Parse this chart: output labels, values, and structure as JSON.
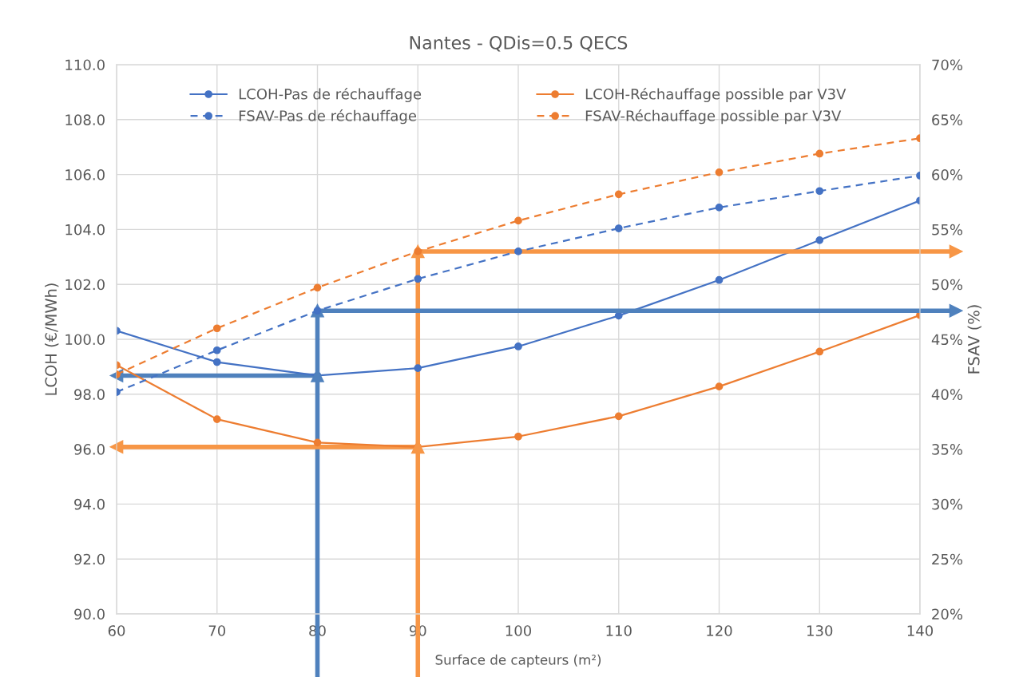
{
  "chart_data": {
    "type": "line",
    "title": "Nantes - QDis=0.5 QECS",
    "xlabel": "Surface de capteurs (m²)",
    "ylabel": "LCOH (€/MWh)",
    "y2label": "FSAV (%)",
    "x": [
      60,
      70,
      80,
      90,
      100,
      110,
      120,
      130,
      140
    ],
    "series": [
      {
        "name": "LCOH-Pas de réchauffage",
        "color": "#4472c4",
        "line_style": "solid",
        "values": [
          100.31,
          99.17,
          98.68,
          98.95,
          99.74,
          100.86,
          102.16,
          103.61,
          105.05
        ]
      },
      {
        "name": "LCOH-Réchauffage possible par V3V",
        "color": "#ed7d31",
        "line_style": "solid",
        "values": [
          99.06,
          97.09,
          96.24,
          96.08,
          96.46,
          97.2,
          98.28,
          99.55,
          100.88
        ]
      },
      {
        "name": "FSAV-Pas de réchauffage",
        "color": "#4472c4",
        "line_style": "dashed",
        "axis": "y2",
        "values": [
          40.2,
          44.0,
          47.6,
          50.5,
          53.0,
          55.1,
          57.0,
          58.5,
          59.9
        ]
      },
      {
        "name": "FSAV-Réchauffage possible par V3V",
        "color": "#ed7d31",
        "line_style": "dashed",
        "axis": "y2",
        "values": [
          41.8,
          46.0,
          49.7,
          53.0,
          55.8,
          58.2,
          60.2,
          61.9,
          63.3
        ]
      }
    ],
    "ref_lines": [
      {
        "axis": "x",
        "value": 80,
        "color": "#4f81bd"
      },
      {
        "axis": "x",
        "value": 90,
        "color": "#f79646"
      },
      {
        "axis": "y",
        "value": 98.68,
        "color": "#4f81bd"
      },
      {
        "axis": "y",
        "value": 96.08,
        "color": "#f79646"
      },
      {
        "axis": "y2",
        "value": 47.6,
        "color": "#4f81bd"
      },
      {
        "axis": "y2",
        "value": 53.0,
        "color": "#f79646"
      }
    ],
    "marker": "circle",
    "grid": true,
    "legend": "top",
    "xlim": [
      60,
      140
    ],
    "xticks": [
      60,
      70,
      80,
      90,
      100,
      110,
      120,
      130,
      140
    ],
    "ylim": [
      90,
      110
    ],
    "yticks": [
      {
        "value": 90,
        "label": "90.0"
      },
      {
        "value": 92,
        "label": "92.0"
      },
      {
        "value": 94,
        "label": "94.0"
      },
      {
        "value": 96,
        "label": "96.0"
      },
      {
        "value": 98,
        "label": "98.0"
      },
      {
        "value": 100,
        "label": "100.0"
      },
      {
        "value": 102,
        "label": "102.0"
      },
      {
        "value": 104,
        "label": "104.0"
      },
      {
        "value": 106,
        "label": "106.0"
      },
      {
        "value": 108,
        "label": "108.0"
      },
      {
        "value": 110,
        "label": "110.0"
      }
    ],
    "y2lim": [
      20,
      70
    ],
    "y2ticks": [
      {
        "value": 20,
        "label": "20%"
      },
      {
        "value": 25,
        "label": "25%"
      },
      {
        "value": 30,
        "label": "30%"
      },
      {
        "value": 35,
        "label": "35%"
      },
      {
        "value": 40,
        "label": "40%"
      },
      {
        "value": 45,
        "label": "45%"
      },
      {
        "value": 50,
        "label": "50%"
      },
      {
        "value": 55,
        "label": "55%"
      },
      {
        "value": 60,
        "label": "60%"
      },
      {
        "value": 65,
        "label": "65%"
      },
      {
        "value": 70,
        "label": "70%"
      }
    ]
  }
}
